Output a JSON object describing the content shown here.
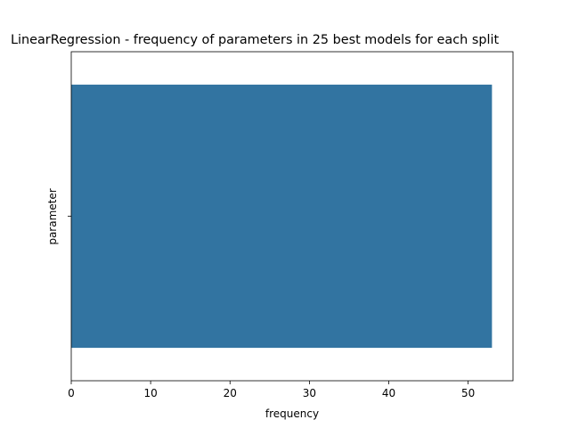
{
  "chart_data": {
    "type": "bar",
    "orientation": "horizontal",
    "title": "LinearRegression - frequency of parameters in 25 best models for each split",
    "xlabel": "frequency",
    "ylabel": "parameter",
    "categories": [
      ""
    ],
    "values": [
      53
    ],
    "xlim": [
      0,
      55.65
    ],
    "xticks": [
      0,
      10,
      20,
      30,
      40,
      50
    ],
    "grid": false,
    "legend": "none",
    "bar_color": "#3274a1"
  }
}
